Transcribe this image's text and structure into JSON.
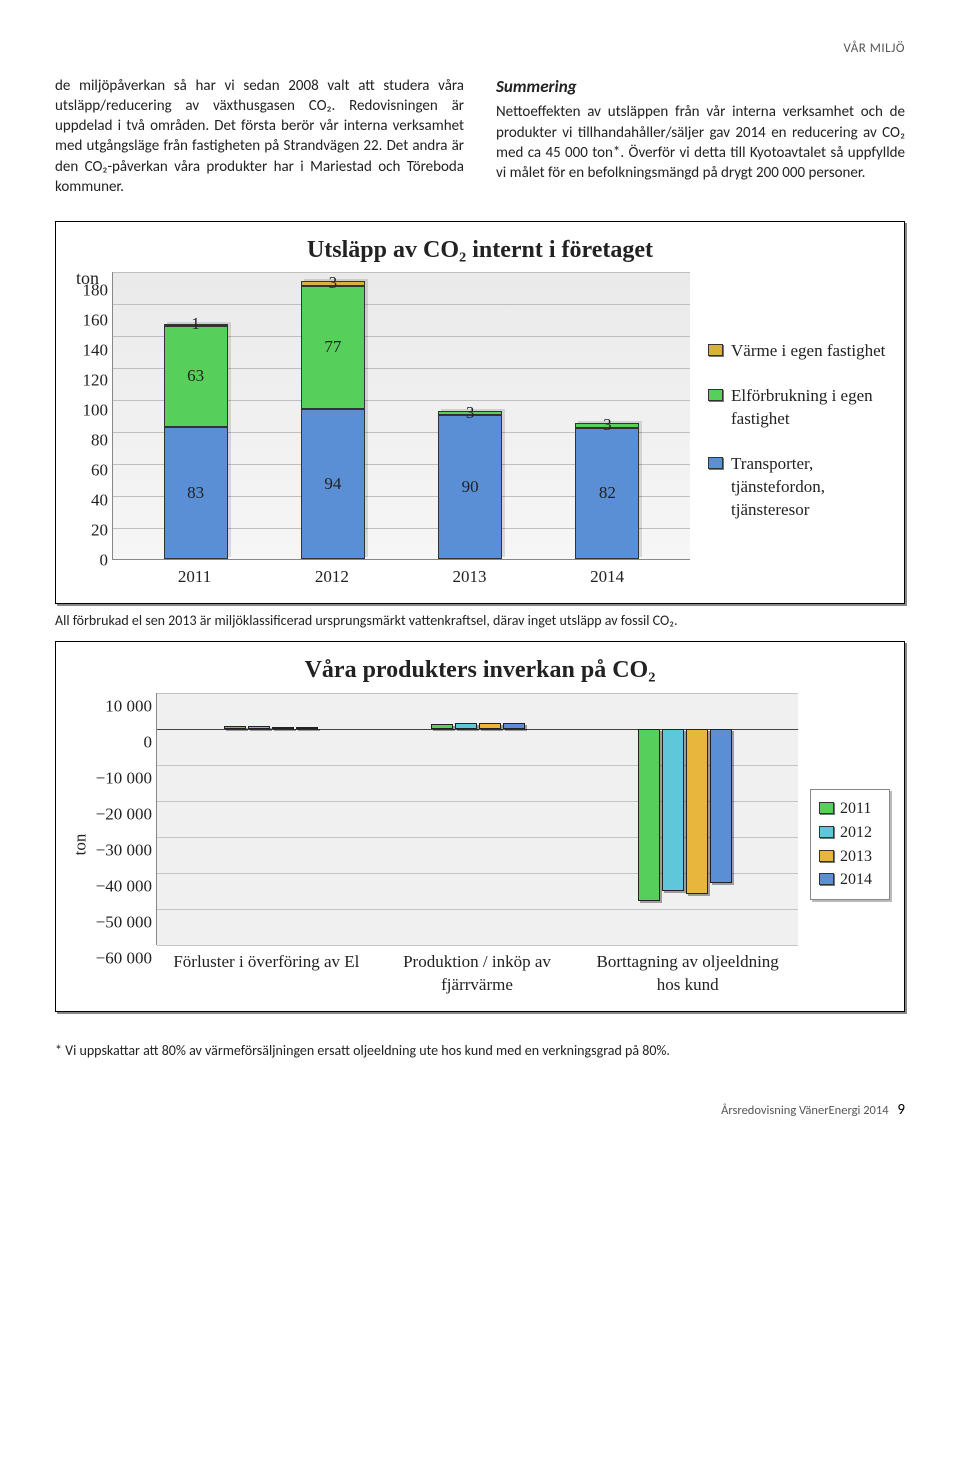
{
  "header_tag": "VÅR MILJÖ",
  "left_para": "de miljöpåverkan så har vi sedan 2008 valt att studera våra utsläpp/reducering av växthusgasen CO₂. Redovisningen är uppdelad i två områden. Det första berör vår interna verksamhet med utgångsläge från fastigheten på Strandvägen 22. Det andra är den CO₂-påverkan våra produkter har i Mariestad och Töreboda kommuner.",
  "right_head": "Summering",
  "right_para": "Nettoeffekten av utsläppen från vår interna verksamhet och de produkter vi tillhandahåller/säljer gav 2014 en reducering av CO₂ med ca 45 000 ton*. Överför vi detta till Kyotoavtalet så uppfyllde vi målet för en befolkningsmängd på drygt 200 000 personer.",
  "chart1": {
    "title": "Utsläpp av CO₂ internt i företaget",
    "y_unit": "ton",
    "y_min": 0,
    "y_max": 180,
    "y_step": 20,
    "categories": [
      "2011",
      "2012",
      "2013",
      "2014"
    ],
    "series": [
      {
        "name": "Transporter, tjänstefordon, tjänsteresor",
        "color": "#5a8fd6",
        "values": [
          83,
          94,
          90,
          82
        ]
      },
      {
        "name": "Elförbrukning i egen fastighet",
        "color": "#56d05a",
        "values": [
          63,
          77,
          3,
          3
        ]
      },
      {
        "name": "Värme i egen fastighet",
        "color": "#d6b43a",
        "values": [
          1,
          3,
          0,
          0
        ]
      }
    ],
    "background": "#efefef",
    "grid_color": "#bfbfbf",
    "caption": "All förbrukad el sen 2013 är miljöklassificerad ursprungsmärkt vattenkraftsel, därav inget utsläpp av fossil CO₂."
  },
  "chart2": {
    "title": "Våra produkters inverkan på CO₂",
    "y_label": "ton",
    "y_min": -60000,
    "y_max": 10000,
    "y_step": 10000,
    "categories": [
      "Förluster i överföring av El",
      "Produktion / inköp av fjärrvärme",
      "Borttagning av oljeeldning hos kund"
    ],
    "series": [
      {
        "name": "2011",
        "color": "#56d05a",
        "values": [
          800,
          1200,
          -48000
        ]
      },
      {
        "name": "2012",
        "color": "#5fc7da",
        "values": [
          800,
          1500,
          -45000
        ]
      },
      {
        "name": "2013",
        "color": "#e8b63c",
        "values": [
          0,
          1600,
          -46000
        ]
      },
      {
        "name": "2014",
        "color": "#5a8fd6",
        "values": [
          0,
          1700,
          -43000
        ]
      }
    ],
    "background": "#f0f0f0",
    "grid_color": "#c4c4c4"
  },
  "footnote": "* Vi uppskattar att 80% av värmeförsäljningen ersatt oljeeldning ute hos kund med en verkningsgrad på 80%.",
  "footer_text": "Årsredovisning VänerEnergi 2014",
  "page_number": "9"
}
